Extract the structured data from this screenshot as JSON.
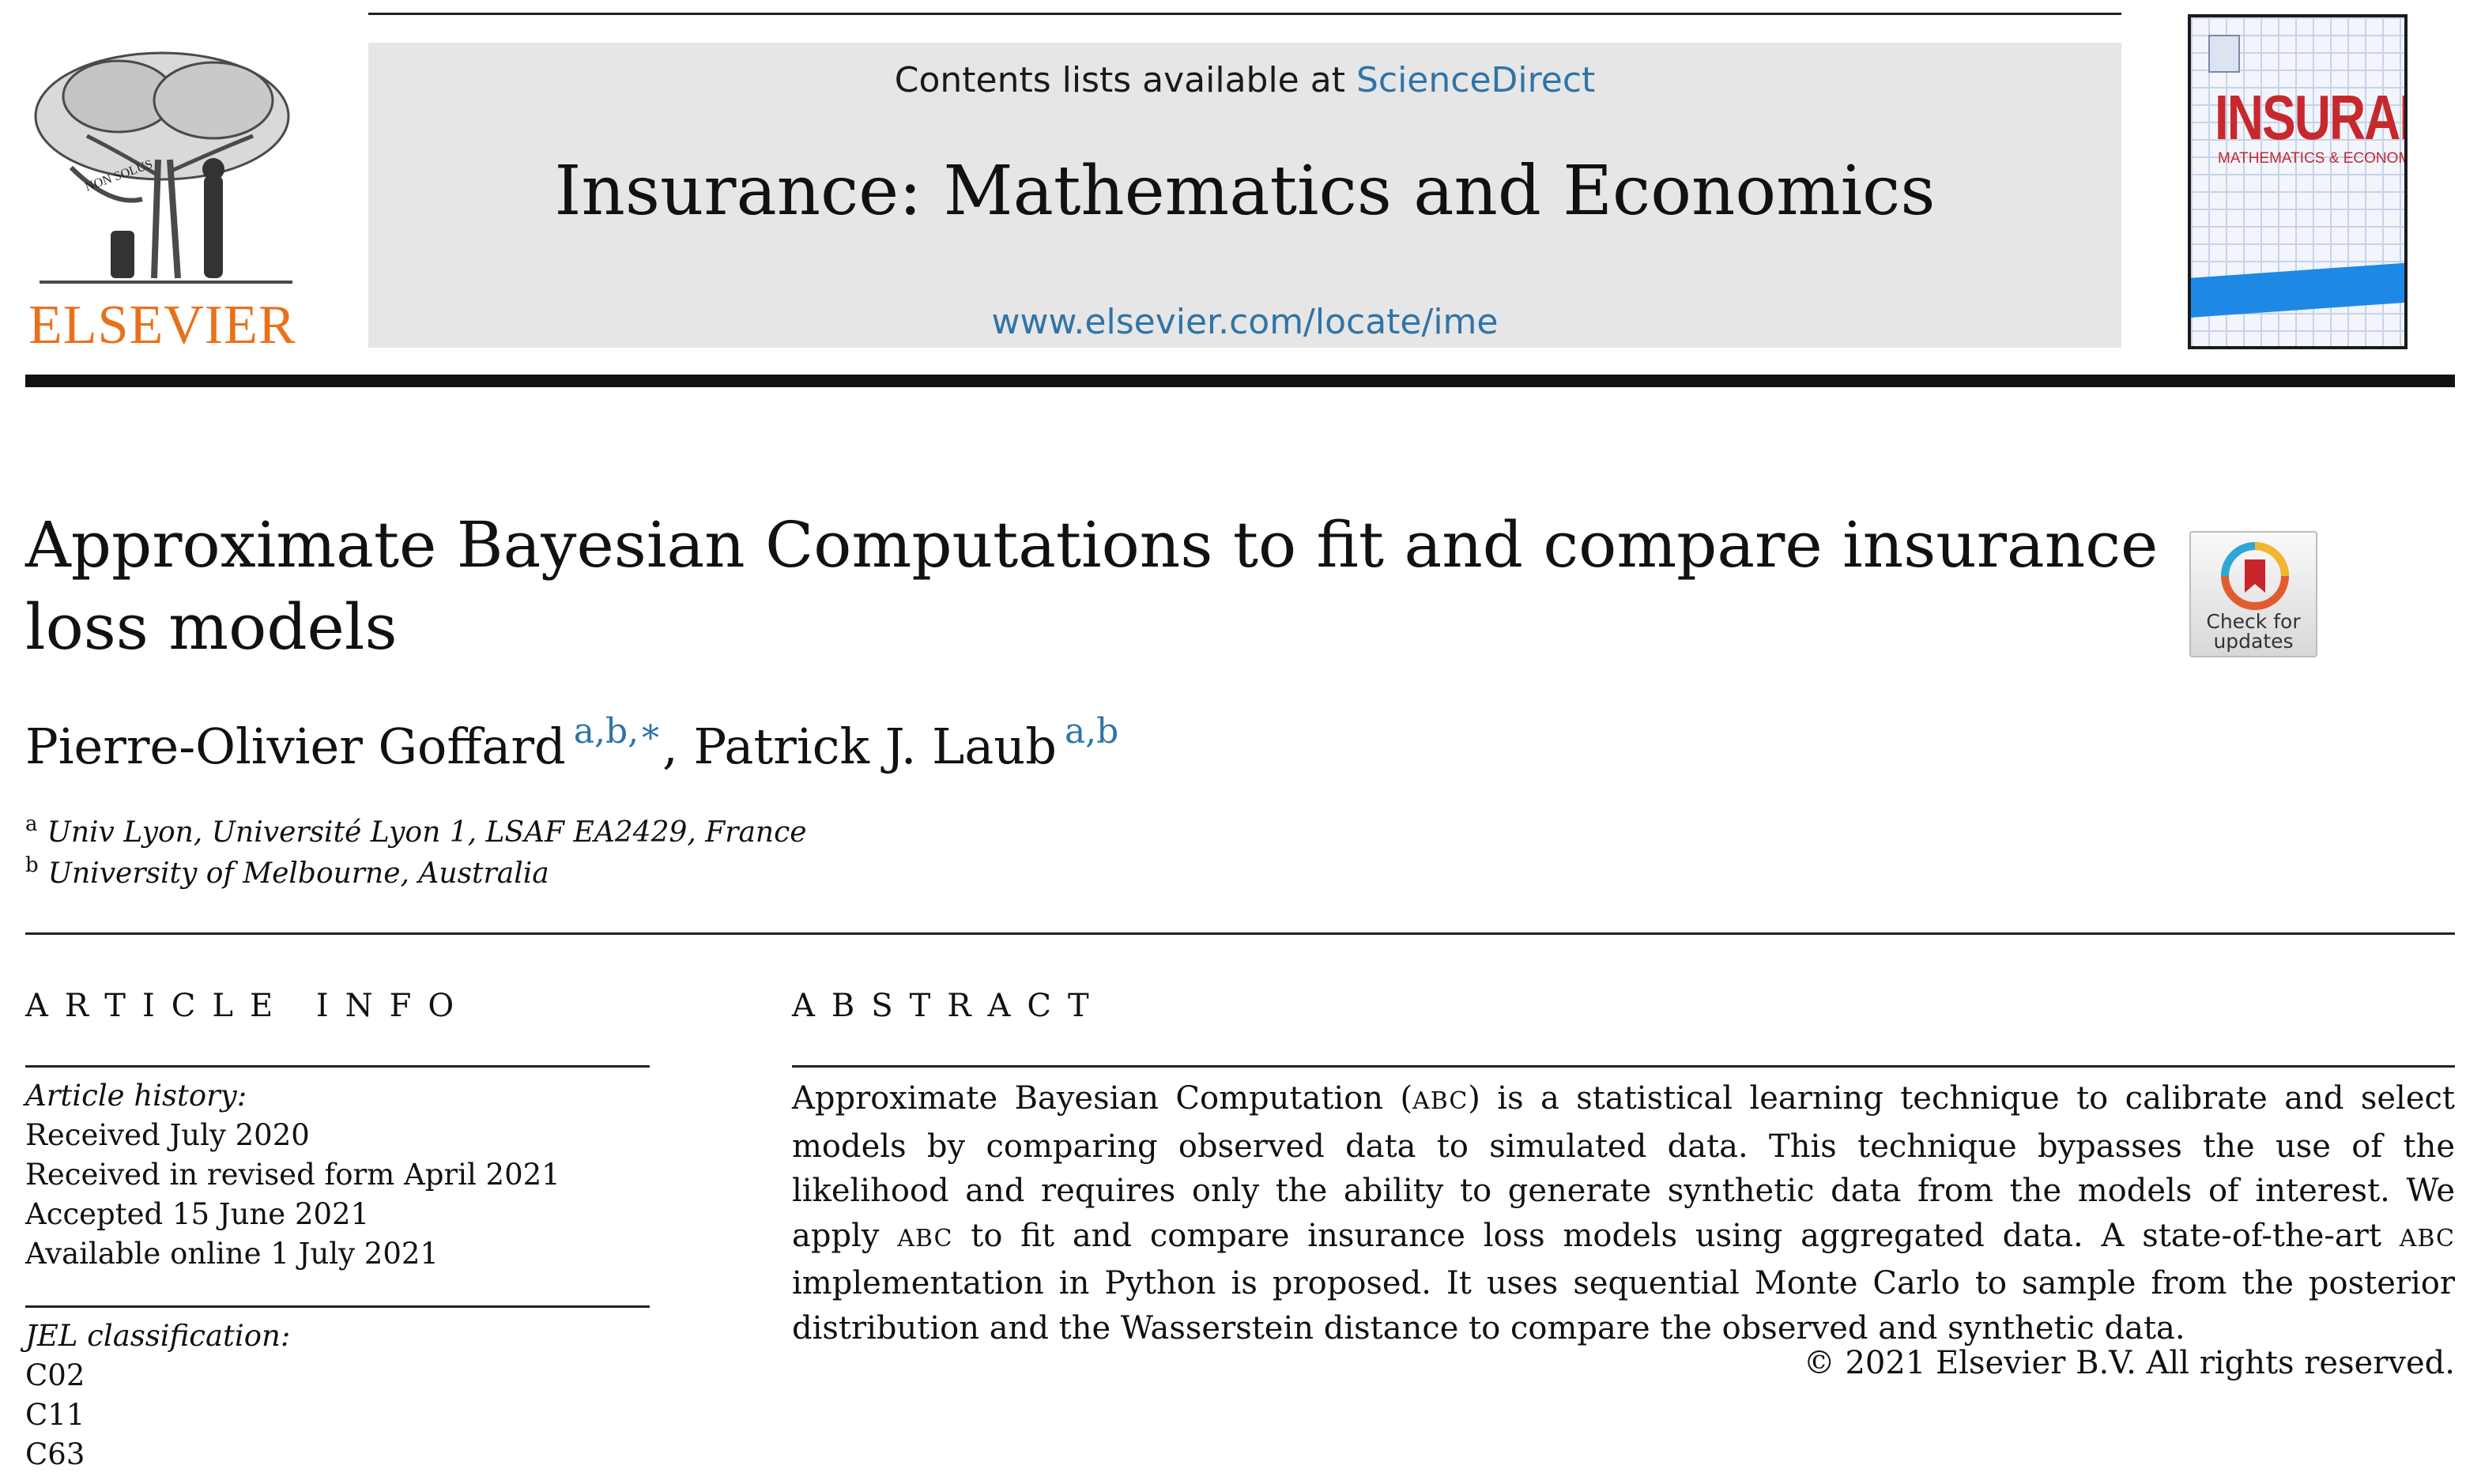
{
  "header": {
    "contents_prefix": "Contents lists available at ",
    "contents_link": "ScienceDirect",
    "journal_title": "Insurance: Mathematics and Economics",
    "journal_url": "www.elsevier.com/locate/ime",
    "publisher_logo_text": "ELSEVIER",
    "publisher_logo_motto": "NON SOLUS",
    "cover_title": "INSURANCE",
    "cover_subtitle": "MATHEMATICS & ECONOMICS",
    "cover_band_color": "#1e88e5",
    "accent_color": "#e9711c",
    "link_color": "#2e74a8"
  },
  "crossmark": {
    "line1": "Check for",
    "line2": "updates",
    "icon": "crossmark-bookmark-icon"
  },
  "article": {
    "title": "Approximate Bayesian Computations to fit and compare insurance loss models",
    "authors": [
      {
        "name": "Pierre-Olivier Goffard",
        "marks": "a,b,∗",
        "separator": ", "
      },
      {
        "name": "Patrick J. Laub",
        "marks": "a,b",
        "separator": ""
      }
    ],
    "affiliations": [
      {
        "mark": "a",
        "text": "Univ Lyon, Université Lyon 1, LSAF EA2429, France"
      },
      {
        "mark": "b",
        "text": "University of Melbourne, Australia"
      }
    ]
  },
  "article_info": {
    "heading": "ARTICLE INFO",
    "history_label": "Article history:",
    "history": [
      "Received July 2020",
      "Received in revised form April 2021",
      "Accepted 15 June 2021",
      "Available online 1 July 2021"
    ],
    "jel_label": "JEL classification:",
    "jel_codes": [
      "C02",
      "C11",
      "C63"
    ]
  },
  "abstract": {
    "heading": "ABSTRACT",
    "segments": [
      {
        "text": "Approximate Bayesian Computation (",
        "sc": false
      },
      {
        "text": "ABC",
        "sc": true
      },
      {
        "text": ") is a statistical learning technique to calibrate and select models by comparing observed data to simulated data. This technique bypasses the use of the likelihood and requires only the ability to generate synthetic data from the models of interest. We apply ",
        "sc": false
      },
      {
        "text": "ABC",
        "sc": true
      },
      {
        "text": " to fit and compare insurance loss models using aggregated data. A state-of-the-art ",
        "sc": false
      },
      {
        "text": "ABC",
        "sc": true
      },
      {
        "text": " implementation in Python is proposed. It uses sequential Monte Carlo to sample from the posterior distribution and the Wasserstein distance to compare the observed and synthetic data.",
        "sc": false
      }
    ],
    "copyright": "© 2021 Elsevier B.V. All rights reserved."
  }
}
